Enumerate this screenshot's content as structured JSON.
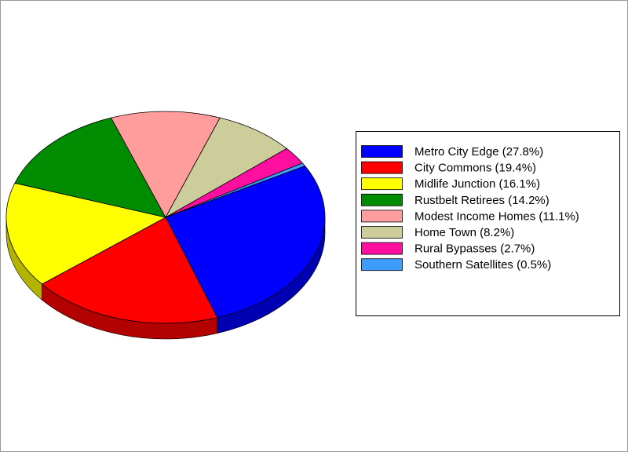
{
  "chart_data": {
    "type": "pie",
    "categories": [
      "Metro City Edge (27.8%)",
      "City Commons (19.4%)",
      "Midlife Junction (16.1%)",
      "Rustbelt Retirees (14.2%)",
      "Modest Income Homes (11.1%)",
      "Home Town (8.2%)",
      "Rural Bypasses (2.7%)",
      "Southern Satellites (0.5%)"
    ],
    "values": [
      27.8,
      19.4,
      16.1,
      14.2,
      11.1,
      8.2,
      2.7,
      0.5
    ],
    "colors": [
      "#0000ff",
      "#ff0000",
      "#ffff00",
      "#008c00",
      "#ff9c9c",
      "#cdcd9c",
      "#ff0fa0",
      "#3c9cff"
    ],
    "legend": "right"
  }
}
